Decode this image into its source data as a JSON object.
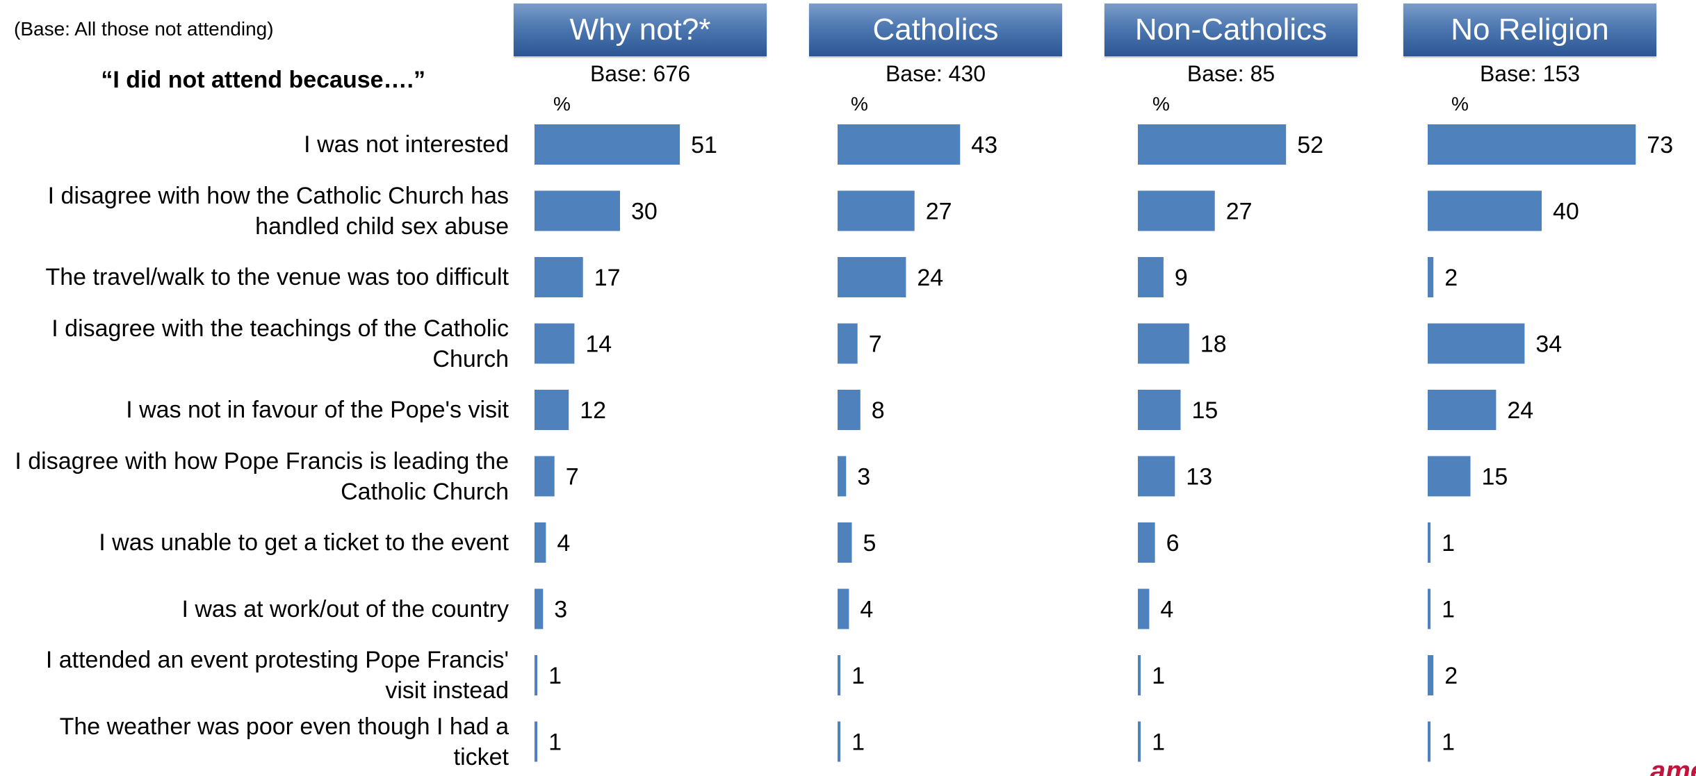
{
  "base_note": "(Base: All those not attending)",
  "question": "“I did not attend because….”",
  "pct_symbol": "%",
  "brand": "amé",
  "colors": {
    "bar": "#4f81bd",
    "header_top": "#7c9cc9",
    "header_bottom": "#2c5693"
  },
  "chart_data": {
    "type": "bar",
    "orientation": "horizontal",
    "categories": [
      "I was not interested",
      "I disagree with how the Catholic Church has handled child sex abuse",
      "The travel/walk to the venue was too difficult",
      "I disagree with the teachings of the Catholic Church",
      "I was not in favour of the Pope's visit",
      "I disagree with how Pope Francis is leading the Catholic Church",
      "I was unable to get a ticket to the event",
      "I was at work/out of the country",
      "I attended an event protesting Pope Francis' visit instead",
      "The weather was poor even though I had a ticket"
    ],
    "category_lines": [
      [
        "I was not interested"
      ],
      [
        "I disagree with how the Catholic Church has",
        "handled child sex abuse"
      ],
      [
        "The travel/walk to the venue was too difficult"
      ],
      [
        "I disagree with the teachings of the Catholic",
        "Church"
      ],
      [
        "I was not in favour of the Pope's visit"
      ],
      [
        "I disagree with how Pope Francis is leading the",
        "Catholic Church"
      ],
      [
        "I was unable to get a ticket to the event"
      ],
      [
        "I was at work/out of the country"
      ],
      [
        "I attended an event protesting Pope Francis'",
        "visit instead"
      ],
      [
        "The weather was poor even though I had a",
        "ticket"
      ]
    ],
    "unit": "%",
    "series": [
      {
        "name": "Why not?*",
        "base": "Base: 676",
        "values": [
          51,
          30,
          17,
          14,
          12,
          7,
          4,
          3,
          1,
          1
        ]
      },
      {
        "name": "Catholics",
        "base": "Base: 430",
        "values": [
          43,
          27,
          24,
          7,
          8,
          3,
          5,
          4,
          1,
          1
        ]
      },
      {
        "name": "Non-Catholics",
        "base": "Base: 85",
        "values": [
          52,
          27,
          9,
          18,
          15,
          13,
          6,
          4,
          1,
          1
        ]
      },
      {
        "name": "No Religion",
        "base": "Base: 153",
        "values": [
          73,
          40,
          2,
          34,
          24,
          15,
          1,
          1,
          2,
          1
        ]
      }
    ]
  }
}
